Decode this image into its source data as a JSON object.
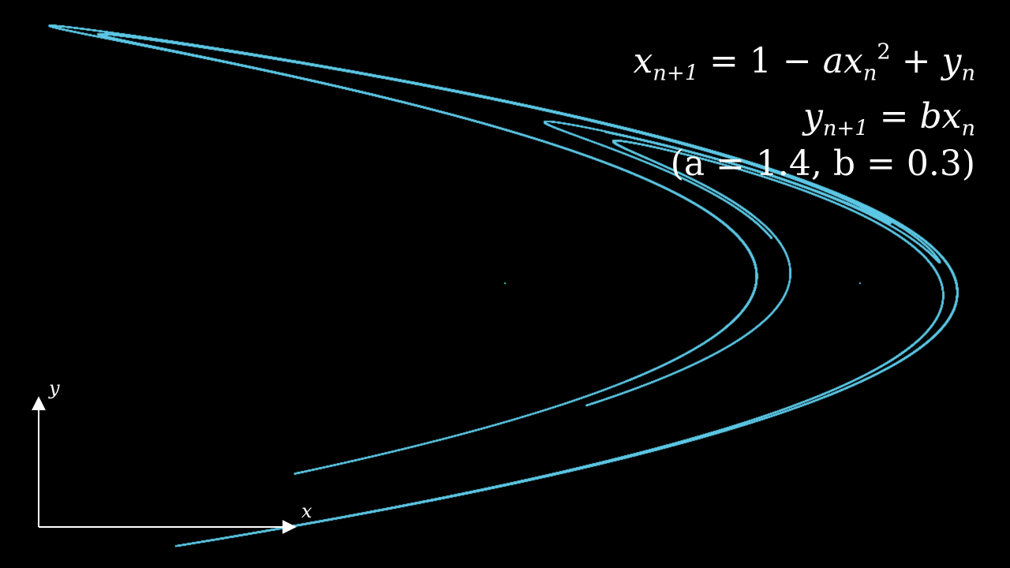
{
  "equations": {
    "line1": {
      "x": "x",
      "sub_n1": "n+1",
      "eq": " = 1 − ",
      "a": "a",
      "x2": "x",
      "sub_n": "n",
      "sup_2": "2",
      "plus": " + ",
      "y": "y",
      "sub_n_y": "n"
    },
    "line2": {
      "y": "y",
      "sub_n1": "n+1",
      "eq": " = ",
      "b": "b",
      "x": "x",
      "sub_n": "n"
    },
    "line3": "(a = 1.4, b = 0.3)"
  },
  "axes": {
    "x_label": "x",
    "y_label": "y"
  },
  "attractor": {
    "a": 1.4,
    "b": 0.3,
    "color": "#5ec8e5",
    "point_color": "#3fd1a0"
  },
  "colors": {
    "background": "#000000",
    "text": "#ffffff"
  }
}
